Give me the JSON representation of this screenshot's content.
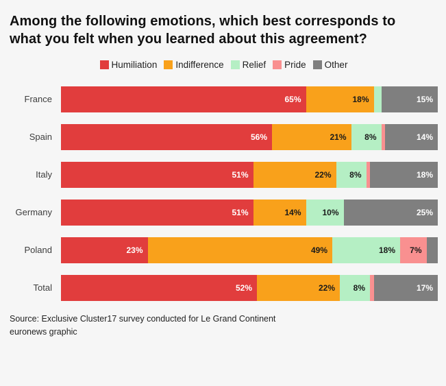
{
  "title": "Among the following emotions, which best corresponds to what you felt when you learned about this agreement?",
  "source": {
    "line1": "Source: Exclusive Cluster17 survey conducted for Le Grand Continent",
    "line2": "euronews graphic"
  },
  "chart_data": {
    "type": "bar",
    "orientation": "horizontal",
    "stacked": true,
    "legend_position": "top",
    "xlim": [
      0,
      100
    ],
    "label_format": "percent",
    "min_label_value": 7,
    "categories": [
      "France",
      "Spain",
      "Italy",
      "Germany",
      "Poland",
      "Total"
    ],
    "series": [
      {
        "name": "Humiliation",
        "color": "#e13d3d",
        "label_color": "#ffffff",
        "values": [
          65,
          56,
          51,
          51,
          23,
          52
        ]
      },
      {
        "name": "Indifference",
        "color": "#f9a11b",
        "label_color": "#1a1a1a",
        "values": [
          18,
          21,
          22,
          14,
          49,
          22
        ]
      },
      {
        "name": "Relief",
        "color": "#b5efc4",
        "label_color": "#1a1a1a",
        "values": [
          2,
          8,
          8,
          10,
          18,
          8
        ]
      },
      {
        "name": "Pride",
        "color": "#f99090",
        "label_color": "#1a1a1a",
        "values": [
          0,
          1,
          1,
          0,
          7,
          1
        ]
      },
      {
        "name": "Other",
        "color": "#7f7f7f",
        "label_color": "#ffffff",
        "values": [
          15,
          14,
          18,
          25,
          3,
          17
        ]
      }
    ]
  }
}
